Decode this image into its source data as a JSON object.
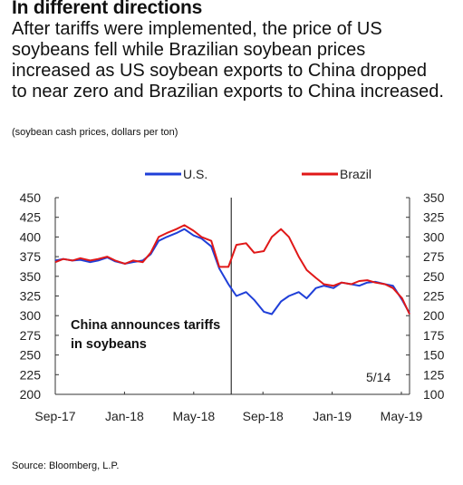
{
  "header": {
    "title": "In different directions",
    "subtitle": "After tariffs were implemented, the price of US soybeans fell while Brazilian soybean prices increased as US soybean exports to China dropped to near zero and Brazilian exports to China increased.",
    "units": "(soybean cash prices, dollars per ton)"
  },
  "footer": {
    "source": "Source: Bloomberg, L.P."
  },
  "chart_data": {
    "type": "line",
    "x_tick_labels": [
      "Sep-17",
      "Jan-18",
      "May-18",
      "Sep-18",
      "Jan-19",
      "May-19"
    ],
    "x_range": [
      "2017-09-01",
      "2019-05-14"
    ],
    "y_left": {
      "ticks": [
        200,
        225,
        250,
        275,
        300,
        325,
        350,
        375,
        400,
        425,
        450
      ],
      "range": [
        200,
        450
      ]
    },
    "y_right": {
      "ticks": [
        100,
        125,
        150,
        175,
        200,
        225,
        250,
        275,
        300,
        325,
        350
      ],
      "range": [
        100,
        350
      ]
    },
    "legend": {
      "position": "top-center",
      "items": [
        "U.S.",
        "Brazil"
      ]
    },
    "series": [
      {
        "name": "U.S.",
        "color": "#1f3fd8",
        "axis": "left",
        "points": [
          [
            "2017-09-01",
            370
          ],
          [
            "2017-09-15",
            372
          ],
          [
            "2017-10-01",
            370
          ],
          [
            "2017-10-15",
            371
          ],
          [
            "2017-11-01",
            368
          ],
          [
            "2017-11-15",
            370
          ],
          [
            "2017-12-01",
            374
          ],
          [
            "2017-12-15",
            369
          ],
          [
            "2018-01-01",
            366
          ],
          [
            "2018-01-15",
            368
          ],
          [
            "2018-02-01",
            370
          ],
          [
            "2018-02-15",
            378
          ],
          [
            "2018-03-01",
            395
          ],
          [
            "2018-03-15",
            400
          ],
          [
            "2018-04-01",
            405
          ],
          [
            "2018-04-15",
            410
          ],
          [
            "2018-05-01",
            402
          ],
          [
            "2018-05-15",
            398
          ],
          [
            "2018-06-01",
            388
          ],
          [
            "2018-06-15",
            360
          ],
          [
            "2018-07-01",
            340
          ],
          [
            "2018-07-15",
            325
          ],
          [
            "2018-08-01",
            330
          ],
          [
            "2018-08-15",
            320
          ],
          [
            "2018-09-01",
            305
          ],
          [
            "2018-09-15",
            302
          ],
          [
            "2018-10-01",
            318
          ],
          [
            "2018-10-15",
            325
          ],
          [
            "2018-11-01",
            330
          ],
          [
            "2018-11-15",
            322
          ],
          [
            "2018-12-01",
            335
          ],
          [
            "2018-12-15",
            338
          ],
          [
            "2019-01-01",
            335
          ],
          [
            "2019-01-15",
            342
          ],
          [
            "2019-02-01",
            340
          ],
          [
            "2019-02-15",
            338
          ],
          [
            "2019-03-01",
            342
          ],
          [
            "2019-03-15",
            343
          ],
          [
            "2019-04-01",
            340
          ],
          [
            "2019-04-15",
            338
          ],
          [
            "2019-05-01",
            320
          ],
          [
            "2019-05-14",
            303
          ]
        ]
      },
      {
        "name": "Brazil",
        "color": "#e01818",
        "axis": "right",
        "points": [
          [
            "2017-09-01",
            268
          ],
          [
            "2017-09-15",
            272
          ],
          [
            "2017-10-01",
            270
          ],
          [
            "2017-10-15",
            273
          ],
          [
            "2017-11-01",
            270
          ],
          [
            "2017-11-15",
            272
          ],
          [
            "2017-12-01",
            275
          ],
          [
            "2017-12-15",
            270
          ],
          [
            "2018-01-01",
            266
          ],
          [
            "2018-01-15",
            270
          ],
          [
            "2018-02-01",
            268
          ],
          [
            "2018-02-15",
            280
          ],
          [
            "2018-03-01",
            300
          ],
          [
            "2018-03-15",
            305
          ],
          [
            "2018-04-01",
            310
          ],
          [
            "2018-04-15",
            315
          ],
          [
            "2018-05-01",
            308
          ],
          [
            "2018-05-15",
            300
          ],
          [
            "2018-06-01",
            295
          ],
          [
            "2018-06-15",
            262
          ],
          [
            "2018-07-01",
            262
          ],
          [
            "2018-07-15",
            290
          ],
          [
            "2018-08-01",
            292
          ],
          [
            "2018-08-15",
            280
          ],
          [
            "2018-09-01",
            282
          ],
          [
            "2018-09-15",
            300
          ],
          [
            "2018-10-01",
            310
          ],
          [
            "2018-10-15",
            300
          ],
          [
            "2018-11-01",
            275
          ],
          [
            "2018-11-15",
            258
          ],
          [
            "2018-12-01",
            248
          ],
          [
            "2018-12-15",
            240
          ],
          [
            "2019-01-01",
            238
          ],
          [
            "2019-01-15",
            242
          ],
          [
            "2019-02-01",
            240
          ],
          [
            "2019-02-15",
            244
          ],
          [
            "2019-03-01",
            245
          ],
          [
            "2019-03-15",
            242
          ],
          [
            "2019-04-01",
            240
          ],
          [
            "2019-04-15",
            235
          ],
          [
            "2019-05-01",
            222
          ],
          [
            "2019-05-14",
            202
          ]
        ]
      }
    ],
    "event": {
      "date": "2018-07-06",
      "label_lines": [
        "China announces tariffs",
        "in soybeans"
      ]
    },
    "end_date_label": "5/14"
  }
}
